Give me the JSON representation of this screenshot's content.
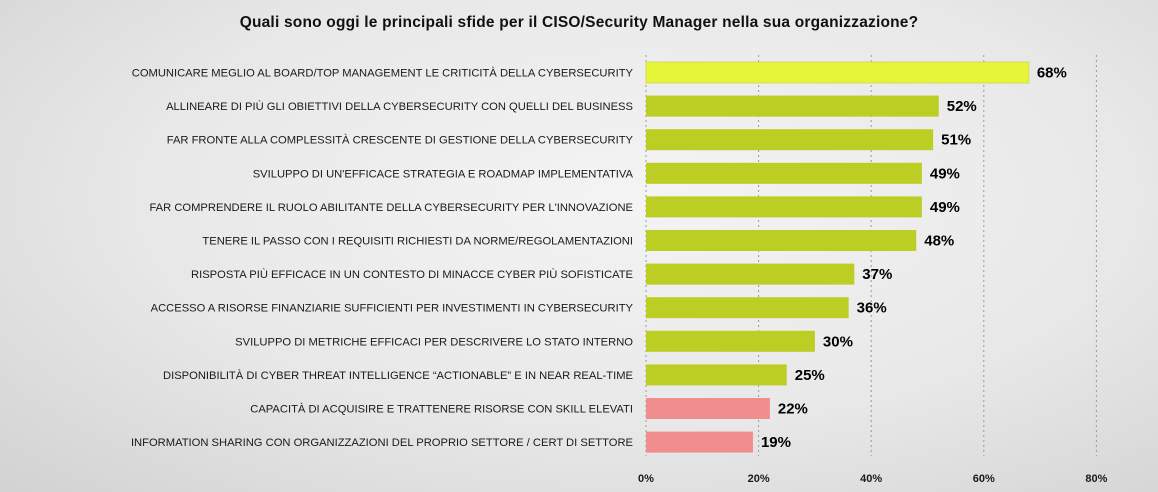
{
  "chart_data": {
    "type": "bar",
    "orientation": "horizontal",
    "title": "Quali sono oggi le principali sfide per il CISO/Security Manager nella sua organizzazione?",
    "categories": [
      "COMUNICARE MEGLIO AL BOARD/TOP MANAGEMENT LE CRITICITÀ DELLA CYBERSECURITY",
      "ALLINEARE DI PIÙ GLI OBIETTIVI DELLA CYBERSECURITY CON QUELLI DEL BUSINESS",
      "FAR FRONTE ALLA COMPLESSITÀ CRESCENTE DI GESTIONE DELLA CYBERSECURITY",
      "SVILUPPO DI UN'EFFICACE STRATEGIA E ROADMAP IMPLEMENTATIVA",
      "FAR COMPRENDERE IL RUOLO ABILITANTE DELLA CYBERSECURITY PER L'INNOVAZIONE",
      "TENERE IL PASSO CON I REQUISITI RICHIESTI DA NORME/REGOLAMENTAZIONI",
      "RISPOSTA PIÙ EFFICACE IN UN CONTESTO DI MINACCE CYBER PIÙ SOFISTICATE",
      "ACCESSO A RISORSE FINANZIARIE SUFFICIENTI PER INVESTIMENTI IN CYBERSECURITY",
      "SVILUPPO DI METRICHE EFFICACI PER DESCRIVERE LO STATO INTERNO",
      "DISPONIBILITÀ DI CYBER THREAT INTELLIGENCE “ACTIONABLE” E IN NEAR REAL-TIME",
      "CAPACITÀ DI ACQUISIRE E TRATTENERE RISORSE CON SKILL ELEVATI",
      "INFORMATION SHARING CON ORGANIZZAZIONI DEL PROPRIO SETTORE / CERT DI SETTORE"
    ],
    "values": [
      68,
      52,
      51,
      49,
      49,
      48,
      37,
      36,
      30,
      25,
      22,
      19
    ],
    "value_labels": [
      "68%",
      "52%",
      "51%",
      "49%",
      "49%",
      "48%",
      "37%",
      "36%",
      "30%",
      "25%",
      "22%",
      "19%"
    ],
    "bar_colors": [
      "#e6f53a",
      "#bccd24",
      "#bccd24",
      "#bccd24",
      "#bccd24",
      "#bccd24",
      "#bccd24",
      "#bccd24",
      "#bccd24",
      "#bccd24",
      "#f08d8d",
      "#f08d8d"
    ],
    "xlim": [
      0,
      80
    ],
    "xticks": [
      0,
      20,
      40,
      60,
      80
    ],
    "xtick_labels": [
      "0%",
      "20%",
      "40%",
      "60%",
      "80%"
    ],
    "grid": "vertical dashed",
    "legend": "none"
  }
}
